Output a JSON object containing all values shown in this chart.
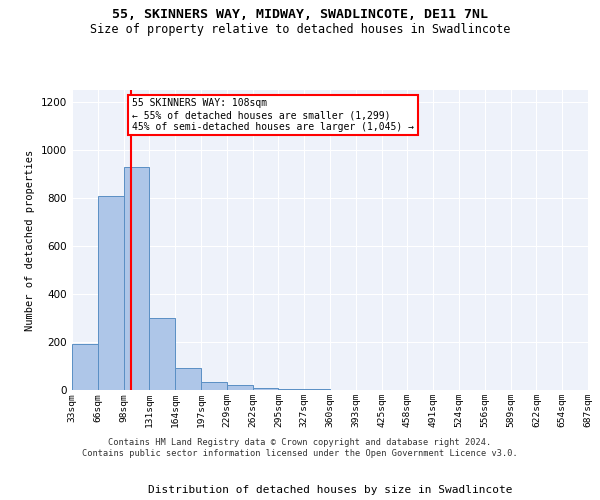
{
  "title1": "55, SKINNERS WAY, MIDWAY, SWADLINCOTE, DE11 7NL",
  "title2": "Size of property relative to detached houses in Swadlincote",
  "xlabel": "Distribution of detached houses by size in Swadlincote",
  "ylabel": "Number of detached properties",
  "bin_edges": [
    33,
    66,
    99,
    132,
    165,
    198,
    231,
    264,
    297,
    330,
    363,
    396,
    429,
    462,
    495,
    528,
    561,
    594,
    627,
    660,
    693
  ],
  "bar_values": [
    193,
    810,
    930,
    300,
    90,
    35,
    20,
    10,
    5,
    3,
    2,
    1,
    0,
    0,
    0,
    0,
    0,
    0,
    0,
    0
  ],
  "bar_color": "#aec6e8",
  "bar_edge_color": "#5a8fc4",
  "vline_x": 108,
  "vline_color": "red",
  "annotation_text": "55 SKINNERS WAY: 108sqm\n← 55% of detached houses are smaller (1,299)\n45% of semi-detached houses are larger (1,045) →",
  "annotation_box_color": "white",
  "annotation_box_edge": "red",
  "ylim": [
    0,
    1250
  ],
  "yticks": [
    0,
    200,
    400,
    600,
    800,
    1000,
    1200
  ],
  "tick_labels": [
    "33sqm",
    "66sqm",
    "98sqm",
    "131sqm",
    "164sqm",
    "197sqm",
    "229sqm",
    "262sqm",
    "295sqm",
    "327sqm",
    "360sqm",
    "393sqm",
    "425sqm",
    "458sqm",
    "491sqm",
    "524sqm",
    "556sqm",
    "589sqm",
    "622sqm",
    "654sqm",
    "687sqm"
  ],
  "footer": "Contains HM Land Registry data © Crown copyright and database right 2024.\nContains public sector information licensed under the Open Government Licence v3.0.",
  "bg_color": "#eef2fa"
}
